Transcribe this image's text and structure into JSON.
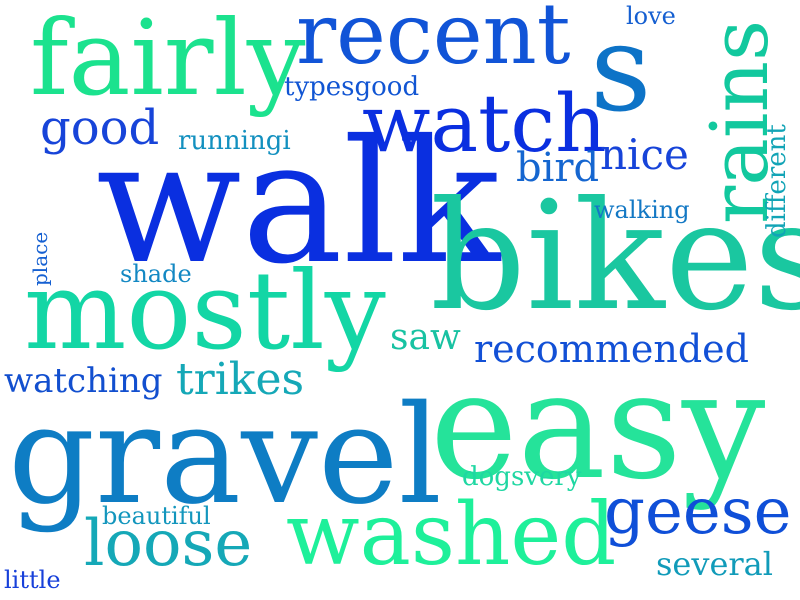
{
  "words": {
    "walk": {
      "text": "walk",
      "color": "#0a2fe0"
    },
    "bikes": {
      "text": "bikes",
      "color": "#1ac7a0"
    },
    "easy": {
      "text": "easy",
      "color": "#25e39a"
    },
    "gravel": {
      "text": "gravel",
      "color": "#0e7dc4"
    },
    "mostly": {
      "text": "mostly",
      "color": "#13d6a5"
    },
    "fairly": {
      "text": "fairly",
      "color": "#1be28e"
    },
    "recent": {
      "text": "recent",
      "color": "#1154d7"
    },
    "s": {
      "text": "s",
      "color": "#0d73c7"
    },
    "rains": {
      "text": "rains",
      "color": "#12c89e"
    },
    "watch": {
      "text": "watch",
      "color": "#0a2fe0"
    },
    "washed": {
      "text": "washed",
      "color": "#1ef09a"
    },
    "loose": {
      "text": "loose",
      "color": "#15a8b7"
    },
    "geese": {
      "text": "geese",
      "color": "#0f4fd8"
    },
    "good": {
      "text": "good",
      "color": "#1744d9"
    },
    "trikes": {
      "text": "trikes",
      "color": "#15a8b7"
    },
    "recommended": {
      "text": "recommended",
      "color": "#1250d6"
    },
    "watching": {
      "text": "watching",
      "color": "#124fcf"
    },
    "nice": {
      "text": "nice",
      "color": "#1744d9"
    },
    "bird": {
      "text": "bird",
      "color": "#1566d0"
    },
    "different": {
      "text": "different",
      "color": "#12a4b6"
    },
    "saw": {
      "text": "saw",
      "color": "#18c2a2"
    },
    "several": {
      "text": "several",
      "color": "#119bb9"
    },
    "typesgood": {
      "text": "typesgood",
      "color": "#1155d3"
    },
    "runningi": {
      "text": "runningi",
      "color": "#1390bf"
    },
    "walking": {
      "text": "walking",
      "color": "#1378c4"
    },
    "shade": {
      "text": "shade",
      "color": "#1388c3"
    },
    "beautiful": {
      "text": "beautiful",
      "color": "#1396bd"
    },
    "dogsvery": {
      "text": "dogsvery",
      "color": "#1fd7a2"
    },
    "love": {
      "text": "love",
      "color": "#155fd1"
    },
    "place": {
      "text": "place",
      "color": "#1560d2"
    },
    "little": {
      "text": "little",
      "color": "#1740da"
    }
  }
}
